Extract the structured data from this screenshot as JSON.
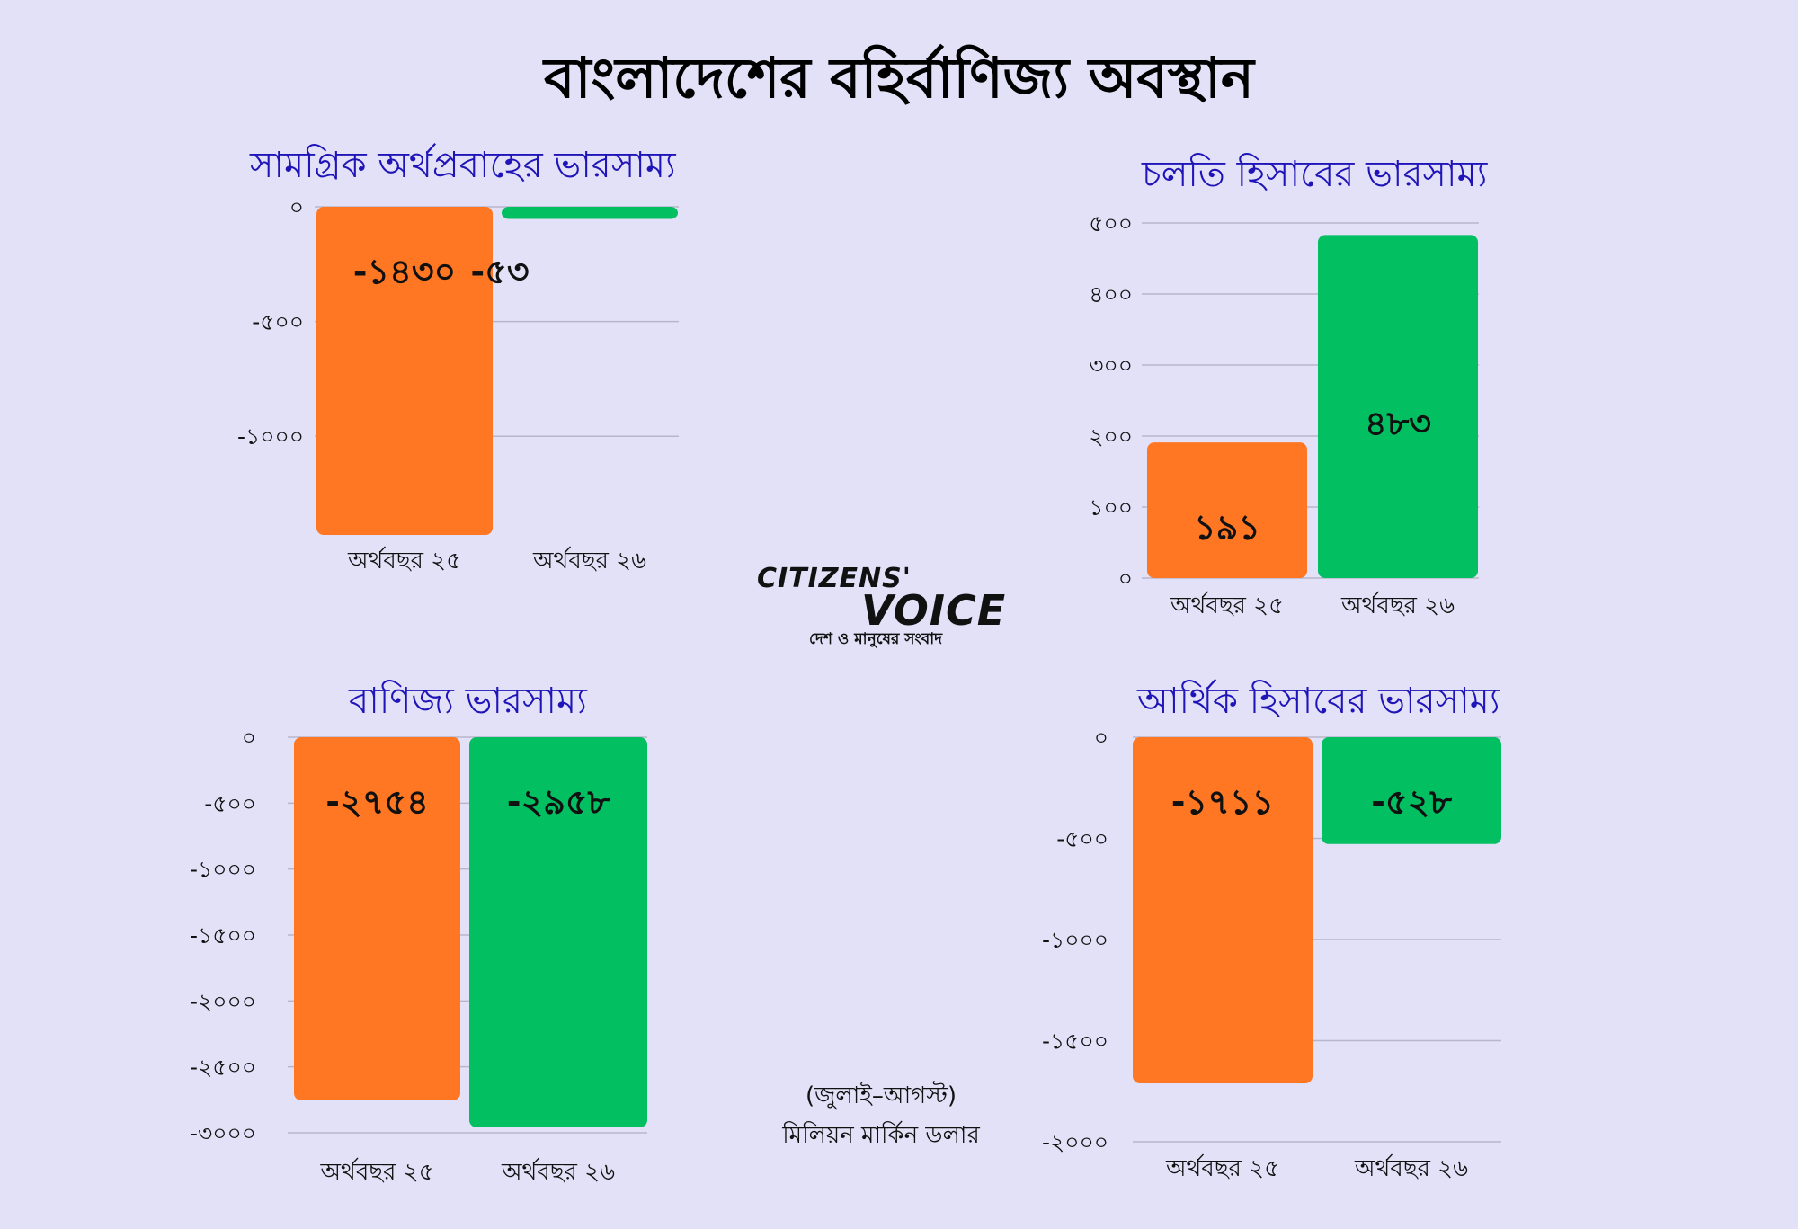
{
  "page_title": "বাংলাদেশের বহির্বাণিজ্য অবস্থান",
  "colors": {
    "fy25": "#ff7722",
    "fy26": "#02bf62",
    "title": "#1f14b8",
    "background": "#e3e1f7"
  },
  "logo": {
    "top": "CITIZENS'",
    "main": "VOICE",
    "tagline": "দেশ ও মানুষের সংবাদ"
  },
  "note": {
    "line1": "(জুলাই–আগস্ট)",
    "line2": "মিলিয়ন মার্কিন ডলার"
  },
  "chart_data": [
    {
      "id": "overall",
      "type": "bar",
      "title": "সামগ্রিক অর্থপ্রবাহের ভারসাম্য",
      "categories": [
        "অর্থবছর ২৫",
        "অর্থবছর ২৬"
      ],
      "values": [
        -1430,
        -53
      ],
      "value_labels": [
        "-১৪৩০",
        "-৫৩"
      ],
      "ylim": [
        -1430,
        0
      ],
      "yticks": [
        0,
        -500,
        -1000
      ],
      "ytick_labels": [
        "০",
        "-৫০০",
        "-১০০০"
      ],
      "grid": true
    },
    {
      "id": "current",
      "type": "bar",
      "title": "চলতি হিসাবের ভারসাম্য",
      "categories": [
        "অর্থবছর ২৫",
        "অর্থবছর ২৬"
      ],
      "values": [
        191,
        483
      ],
      "value_labels": [
        "১৯১",
        "৪৮৩"
      ],
      "ylim": [
        0,
        500
      ],
      "yticks": [
        0,
        100,
        200,
        300,
        400,
        500
      ],
      "ytick_labels": [
        "০",
        "১০০",
        "২০০",
        "৩০০",
        "৪০০",
        "৫০০"
      ],
      "grid": true
    },
    {
      "id": "trade",
      "type": "bar",
      "title": "বাণিজ্য ভারসাম্য",
      "categories": [
        "অর্থবছর ২৫",
        "অর্থবছর ২৬"
      ],
      "values": [
        -2754,
        -2958
      ],
      "value_labels": [
        "-২৭৫৪",
        "-২৯৫৮"
      ],
      "ylim": [
        -3000,
        0
      ],
      "yticks": [
        0,
        -500,
        -1000,
        -1500,
        -2000,
        -2500,
        -3000
      ],
      "ytick_labels": [
        "০",
        "-৫০০",
        "-১০০০",
        "-১৫০০",
        "-২০০০",
        "-২৫০০",
        "-৩০০০"
      ],
      "grid": true
    },
    {
      "id": "financial",
      "type": "bar",
      "title": "আর্থিক হিসাবের ভারসাম্য",
      "categories": [
        "অর্থবছর ২৫",
        "অর্থবছর ২৬"
      ],
      "values": [
        -1711,
        -528
      ],
      "value_labels": [
        "-১৭১১",
        "-৫২৮"
      ],
      "ylim": [
        -2000,
        0
      ],
      "yticks": [
        0,
        -500,
        -1000,
        -1500,
        -2000
      ],
      "ytick_labels": [
        "০",
        "-৫০০",
        "-১০০০",
        "-১৫০০",
        "-২০০০"
      ],
      "grid": true
    }
  ]
}
